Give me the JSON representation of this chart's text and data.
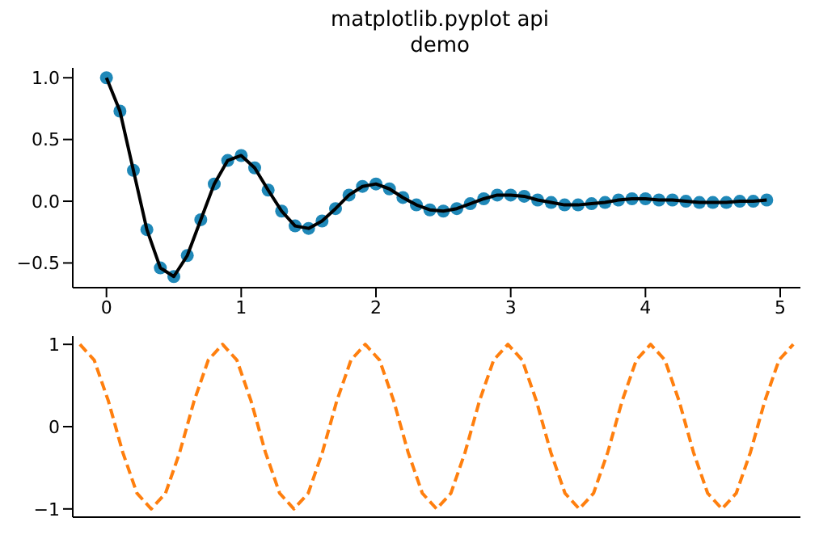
{
  "chart_data": [
    {
      "type": "line",
      "title": "matplotlib.pyplot api\ndemo",
      "x": [
        0,
        0.1,
        0.2,
        0.3,
        0.4,
        0.5,
        0.6,
        0.7,
        0.8,
        0.9,
        1.0,
        1.1,
        1.2,
        1.3,
        1.4,
        1.5,
        1.6,
        1.7,
        1.8,
        1.9,
        2.0,
        2.1,
        2.2,
        2.3,
        2.4,
        2.5,
        2.6,
        2.7,
        2.8,
        2.9,
        3.0,
        3.1,
        3.2,
        3.3,
        3.4,
        3.5,
        3.6,
        3.7,
        3.8,
        3.9,
        4.0,
        4.1,
        4.2,
        4.3,
        4.4,
        4.5,
        4.6,
        4.7,
        4.8,
        4.9
      ],
      "xlim": [
        -0.25,
        5.15
      ],
      "xticks": [
        0,
        1,
        2,
        3,
        4,
        5
      ],
      "ylim": [
        -0.7,
        1.08
      ],
      "yticks": [
        {
          "value": -0.5,
          "label": "−0.5"
        },
        {
          "value": 0,
          "label": "0.0"
        },
        {
          "value": 0.5,
          "label": "0.5"
        },
        {
          "value": 1,
          "label": "1.0"
        }
      ],
      "grid": false,
      "legend": false,
      "series": [
        {
          "type": "scatter",
          "marker": "circle",
          "color": "#1f88b8",
          "values": [
            1.0,
            0.73,
            0.25,
            -0.23,
            -0.54,
            -0.61,
            -0.44,
            -0.15,
            0.14,
            0.33,
            0.37,
            0.27,
            0.09,
            -0.08,
            -0.2,
            -0.22,
            -0.16,
            -0.06,
            0.05,
            0.12,
            0.14,
            0.1,
            0.03,
            -0.03,
            -0.07,
            -0.08,
            -0.06,
            -0.02,
            0.02,
            0.05,
            0.05,
            0.04,
            0.01,
            -0.01,
            -0.03,
            -0.03,
            -0.02,
            -0.01,
            0.01,
            0.02,
            0.02,
            0.01,
            0.01,
            0.0,
            -0.01,
            -0.01,
            -0.01,
            0.0,
            0.0,
            0.01
          ]
        },
        {
          "marker": "none",
          "line_style": "solid",
          "color": "#000000",
          "values": [
            1.0,
            0.73,
            0.25,
            -0.23,
            -0.54,
            -0.61,
            -0.44,
            -0.15,
            0.14,
            0.33,
            0.37,
            0.27,
            0.09,
            -0.08,
            -0.2,
            -0.22,
            -0.16,
            -0.06,
            0.05,
            0.12,
            0.14,
            0.1,
            0.03,
            -0.03,
            -0.07,
            -0.08,
            -0.06,
            -0.02,
            0.02,
            0.05,
            0.05,
            0.04,
            0.01,
            -0.01,
            -0.03,
            -0.03,
            -0.02,
            -0.01,
            0.01,
            0.02,
            0.02,
            0.01,
            0.01,
            0.0,
            -0.01,
            -0.01,
            -0.01,
            0.0,
            0.0,
            0.01
          ]
        }
      ]
    },
    {
      "type": "line",
      "categories": [
        null,
        null,
        null,
        null,
        null,
        null,
        null,
        null,
        null,
        null,
        null,
        null,
        null,
        null,
        null,
        null,
        null,
        null,
        null,
        null,
        null,
        null,
        null,
        null,
        null,
        null,
        null,
        null,
        null,
        null,
        null,
        null,
        null,
        null,
        null,
        null,
        null,
        null,
        null,
        null,
        null,
        null,
        null,
        null,
        null,
        null,
        null,
        null,
        null,
        null,
        null
      ],
      "ylim": [
        -1.1,
        1.1
      ],
      "yticks": [
        {
          "value": -1,
          "label": "−1"
        },
        0,
        1
      ],
      "grid": false,
      "legend": false,
      "tick_labels": "y",
      "series": [
        {
          "marker": "none",
          "line_style": "dashed",
          "color": "#ff7f0e",
          "values": [
            1,
            0.81,
            0.31,
            -0.31,
            -0.81,
            -1,
            -0.81,
            -0.31,
            0.31,
            0.81,
            1,
            0.81,
            0.31,
            -0.31,
            -0.81,
            -1,
            -0.81,
            -0.31,
            0.31,
            0.81,
            1,
            0.81,
            0.31,
            -0.31,
            -0.81,
            -1,
            -0.81,
            -0.31,
            0.31,
            0.81,
            1,
            0.81,
            0.31,
            -0.31,
            -0.81,
            -1,
            -0.81,
            -0.31,
            0.31,
            0.81,
            1,
            0.81,
            0.31,
            -0.31,
            -0.81,
            -1,
            -0.81,
            -0.31,
            0.31,
            0.81,
            1
          ]
        }
      ]
    }
  ]
}
